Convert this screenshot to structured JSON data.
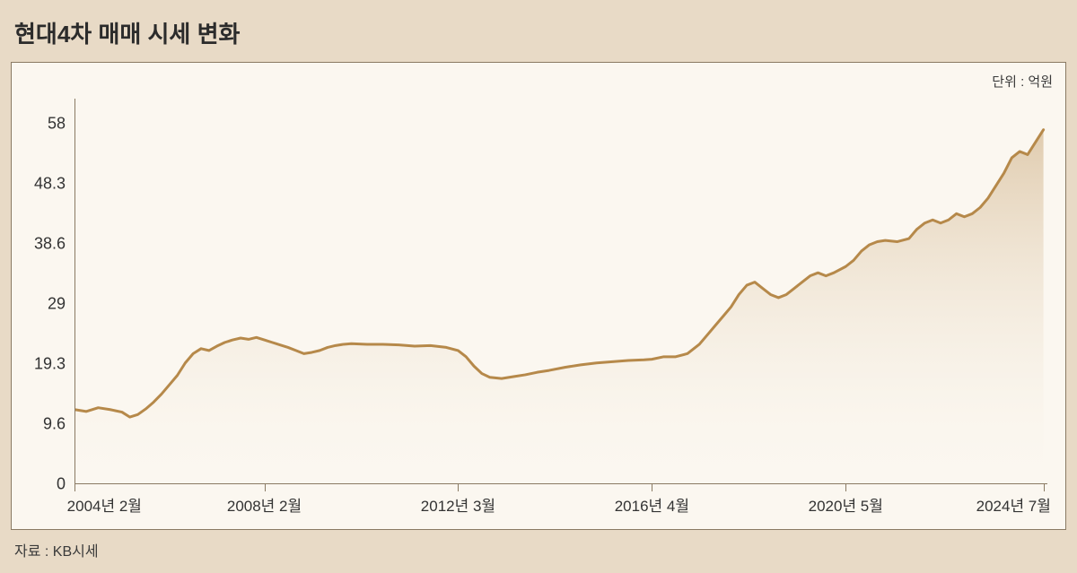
{
  "title": "현대4차 매매 시세 변화",
  "unit_label": "단위 : 억원",
  "source": "자료 : KB시세",
  "chart": {
    "type": "area",
    "background_color": "#fbf7f0",
    "panel_background": "#e8dac6",
    "border_color": "#8a7a63",
    "line_color": "#b6894a",
    "line_width": 3,
    "area_gradient_top": "#d7bd99",
    "area_gradient_top_opacity": 0.75,
    "area_gradient_bottom": "#f9f4ea",
    "area_gradient_bottom_opacity": 0.0,
    "title_fontsize": 26,
    "label_fontsize": 18,
    "xtick_fontsize": 17,
    "xlim": [
      0,
      246
    ],
    "ylim": [
      0,
      62
    ],
    "yticks": [
      {
        "v": 0,
        "label": "0"
      },
      {
        "v": 9.6,
        "label": "9.6"
      },
      {
        "v": 19.3,
        "label": "19.3"
      },
      {
        "v": 29,
        "label": "29"
      },
      {
        "v": 38.6,
        "label": "38.6"
      },
      {
        "v": 48.3,
        "label": "48.3"
      },
      {
        "v": 58,
        "label": "58"
      }
    ],
    "xticks": [
      {
        "v": 0,
        "label": "2004년 2월"
      },
      {
        "v": 48,
        "label": "2008년 2월"
      },
      {
        "v": 97,
        "label": "2012년 3월"
      },
      {
        "v": 146,
        "label": "2016년 4월"
      },
      {
        "v": 195,
        "label": "2020년 5월"
      },
      {
        "v": 245,
        "label": "2024년 7월"
      }
    ],
    "series": [
      {
        "x": 0,
        "y": 12.0
      },
      {
        "x": 3,
        "y": 11.7
      },
      {
        "x": 6,
        "y": 12.3
      },
      {
        "x": 9,
        "y": 12.0
      },
      {
        "x": 12,
        "y": 11.6
      },
      {
        "x": 14,
        "y": 10.8
      },
      {
        "x": 16,
        "y": 11.2
      },
      {
        "x": 18,
        "y": 12.1
      },
      {
        "x": 20,
        "y": 13.2
      },
      {
        "x": 22,
        "y": 14.5
      },
      {
        "x": 24,
        "y": 16.0
      },
      {
        "x": 26,
        "y": 17.5
      },
      {
        "x": 28,
        "y": 19.5
      },
      {
        "x": 30,
        "y": 21.0
      },
      {
        "x": 32,
        "y": 21.8
      },
      {
        "x": 34,
        "y": 21.5
      },
      {
        "x": 36,
        "y": 22.2
      },
      {
        "x": 38,
        "y": 22.8
      },
      {
        "x": 40,
        "y": 23.2
      },
      {
        "x": 42,
        "y": 23.5
      },
      {
        "x": 44,
        "y": 23.3
      },
      {
        "x": 46,
        "y": 23.6
      },
      {
        "x": 48,
        "y": 23.2
      },
      {
        "x": 50,
        "y": 22.8
      },
      {
        "x": 52,
        "y": 22.4
      },
      {
        "x": 54,
        "y": 22.0
      },
      {
        "x": 56,
        "y": 21.5
      },
      {
        "x": 58,
        "y": 21.0
      },
      {
        "x": 60,
        "y": 21.2
      },
      {
        "x": 62,
        "y": 21.5
      },
      {
        "x": 64,
        "y": 22.0
      },
      {
        "x": 66,
        "y": 22.3
      },
      {
        "x": 68,
        "y": 22.5
      },
      {
        "x": 70,
        "y": 22.6
      },
      {
        "x": 74,
        "y": 22.5
      },
      {
        "x": 78,
        "y": 22.5
      },
      {
        "x": 82,
        "y": 22.4
      },
      {
        "x": 86,
        "y": 22.2
      },
      {
        "x": 90,
        "y": 22.3
      },
      {
        "x": 94,
        "y": 22.0
      },
      {
        "x": 97,
        "y": 21.5
      },
      {
        "x": 99,
        "y": 20.5
      },
      {
        "x": 101,
        "y": 19.0
      },
      {
        "x": 103,
        "y": 17.8
      },
      {
        "x": 105,
        "y": 17.2
      },
      {
        "x": 108,
        "y": 17.0
      },
      {
        "x": 111,
        "y": 17.3
      },
      {
        "x": 114,
        "y": 17.6
      },
      {
        "x": 117,
        "y": 18.0
      },
      {
        "x": 120,
        "y": 18.3
      },
      {
        "x": 124,
        "y": 18.8
      },
      {
        "x": 128,
        "y": 19.2
      },
      {
        "x": 132,
        "y": 19.5
      },
      {
        "x": 136,
        "y": 19.7
      },
      {
        "x": 140,
        "y": 19.9
      },
      {
        "x": 144,
        "y": 20.0
      },
      {
        "x": 146,
        "y": 20.1
      },
      {
        "x": 149,
        "y": 20.5
      },
      {
        "x": 152,
        "y": 20.5
      },
      {
        "x": 155,
        "y": 21.0
      },
      {
        "x": 158,
        "y": 22.5
      },
      {
        "x": 160,
        "y": 24.0
      },
      {
        "x": 162,
        "y": 25.5
      },
      {
        "x": 164,
        "y": 27.0
      },
      {
        "x": 166,
        "y": 28.5
      },
      {
        "x": 168,
        "y": 30.5
      },
      {
        "x": 170,
        "y": 32.0
      },
      {
        "x": 172,
        "y": 32.5
      },
      {
        "x": 174,
        "y": 31.5
      },
      {
        "x": 176,
        "y": 30.5
      },
      {
        "x": 178,
        "y": 30.0
      },
      {
        "x": 180,
        "y": 30.5
      },
      {
        "x": 182,
        "y": 31.5
      },
      {
        "x": 184,
        "y": 32.5
      },
      {
        "x": 186,
        "y": 33.5
      },
      {
        "x": 188,
        "y": 34.0
      },
      {
        "x": 190,
        "y": 33.5
      },
      {
        "x": 192,
        "y": 34.0
      },
      {
        "x": 195,
        "y": 35.0
      },
      {
        "x": 197,
        "y": 36.0
      },
      {
        "x": 199,
        "y": 37.5
      },
      {
        "x": 201,
        "y": 38.5
      },
      {
        "x": 203,
        "y": 39.0
      },
      {
        "x": 205,
        "y": 39.2
      },
      {
        "x": 208,
        "y": 39.0
      },
      {
        "x": 211,
        "y": 39.5
      },
      {
        "x": 213,
        "y": 41.0
      },
      {
        "x": 215,
        "y": 42.0
      },
      {
        "x": 217,
        "y": 42.5
      },
      {
        "x": 219,
        "y": 42.0
      },
      {
        "x": 221,
        "y": 42.5
      },
      {
        "x": 223,
        "y": 43.5
      },
      {
        "x": 225,
        "y": 43.0
      },
      {
        "x": 227,
        "y": 43.5
      },
      {
        "x": 229,
        "y": 44.5
      },
      {
        "x": 231,
        "y": 46.0
      },
      {
        "x": 233,
        "y": 48.0
      },
      {
        "x": 235,
        "y": 50.0
      },
      {
        "x": 237,
        "y": 52.5
      },
      {
        "x": 239,
        "y": 53.5
      },
      {
        "x": 241,
        "y": 53.0
      },
      {
        "x": 243,
        "y": 55.0
      },
      {
        "x": 245,
        "y": 57.0
      }
    ]
  }
}
